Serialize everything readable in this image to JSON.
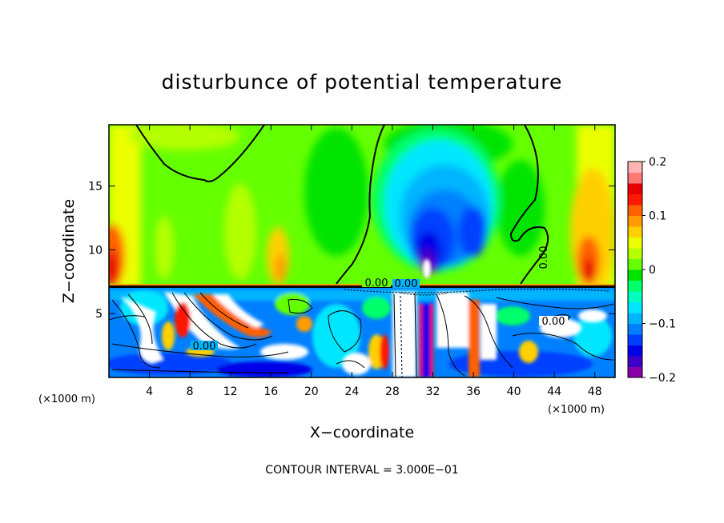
{
  "chart_data": {
    "type": "heatmap",
    "title": "disturbunce of potential temperature",
    "xlabel": "X−coordinate",
    "ylabel": "Z−coordinate",
    "x_unit": "(×1000 m)",
    "y_unit": "(×1000 m)",
    "xlim": [
      0,
      50
    ],
    "ylim": [
      0,
      19.8
    ],
    "x_ticks": [
      4,
      8,
      12,
      16,
      20,
      24,
      28,
      32,
      36,
      40,
      44,
      48
    ],
    "y_ticks": [
      5,
      10,
      15
    ],
    "note": "CONTOUR INTERVAL = 3.000E−01",
    "contour_label": "0.00",
    "colorbar": {
      "min": -0.2,
      "max": 0.2,
      "tick_values": [
        0.2,
        0.1,
        0,
        -0.1,
        -0.2
      ],
      "tick_labels": [
        "0.2",
        "0.1",
        "0",
        "−0.1",
        "−0.2"
      ],
      "colors": [
        "#8a00a8",
        "#3c00c8",
        "#0000e6",
        "#0040ff",
        "#0080ff",
        "#00b4ff",
        "#00e6ff",
        "#00ffc0",
        "#00ff6a",
        "#00e400",
        "#64ff00",
        "#b4ff00",
        "#ecff00",
        "#ffd000",
        "#ff9c00",
        "#ff6000",
        "#ff1800",
        "#e60000",
        "#ff7878",
        "#ffb4b4"
      ]
    },
    "grid": false,
    "legend": "right"
  }
}
